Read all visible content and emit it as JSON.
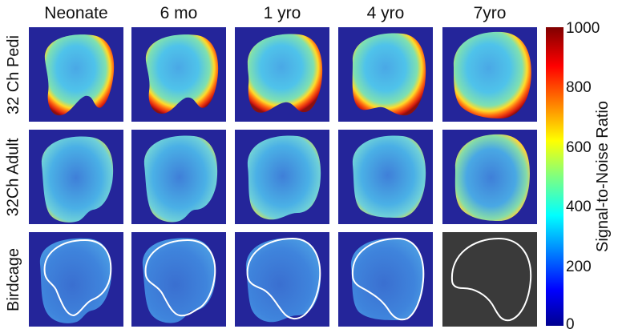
{
  "figure": {
    "columns": [
      "Neonate",
      "6 mo",
      "1 yro",
      "4 yro",
      "7yro"
    ],
    "rows": [
      "32 Ch Pedi",
      "32Ch Adult",
      "Birdcage"
    ],
    "colorbar": {
      "title": "Signal-to-Noise Ratio",
      "ticks": [
        "1000",
        "800",
        "600",
        "400",
        "200",
        "0"
      ],
      "range": [
        0,
        1000
      ],
      "colormap": "jet"
    },
    "colors": {
      "background": "#24259a",
      "birdcage_7yro_background": "#3a3a3a",
      "outline": "#ffffff"
    }
  }
}
